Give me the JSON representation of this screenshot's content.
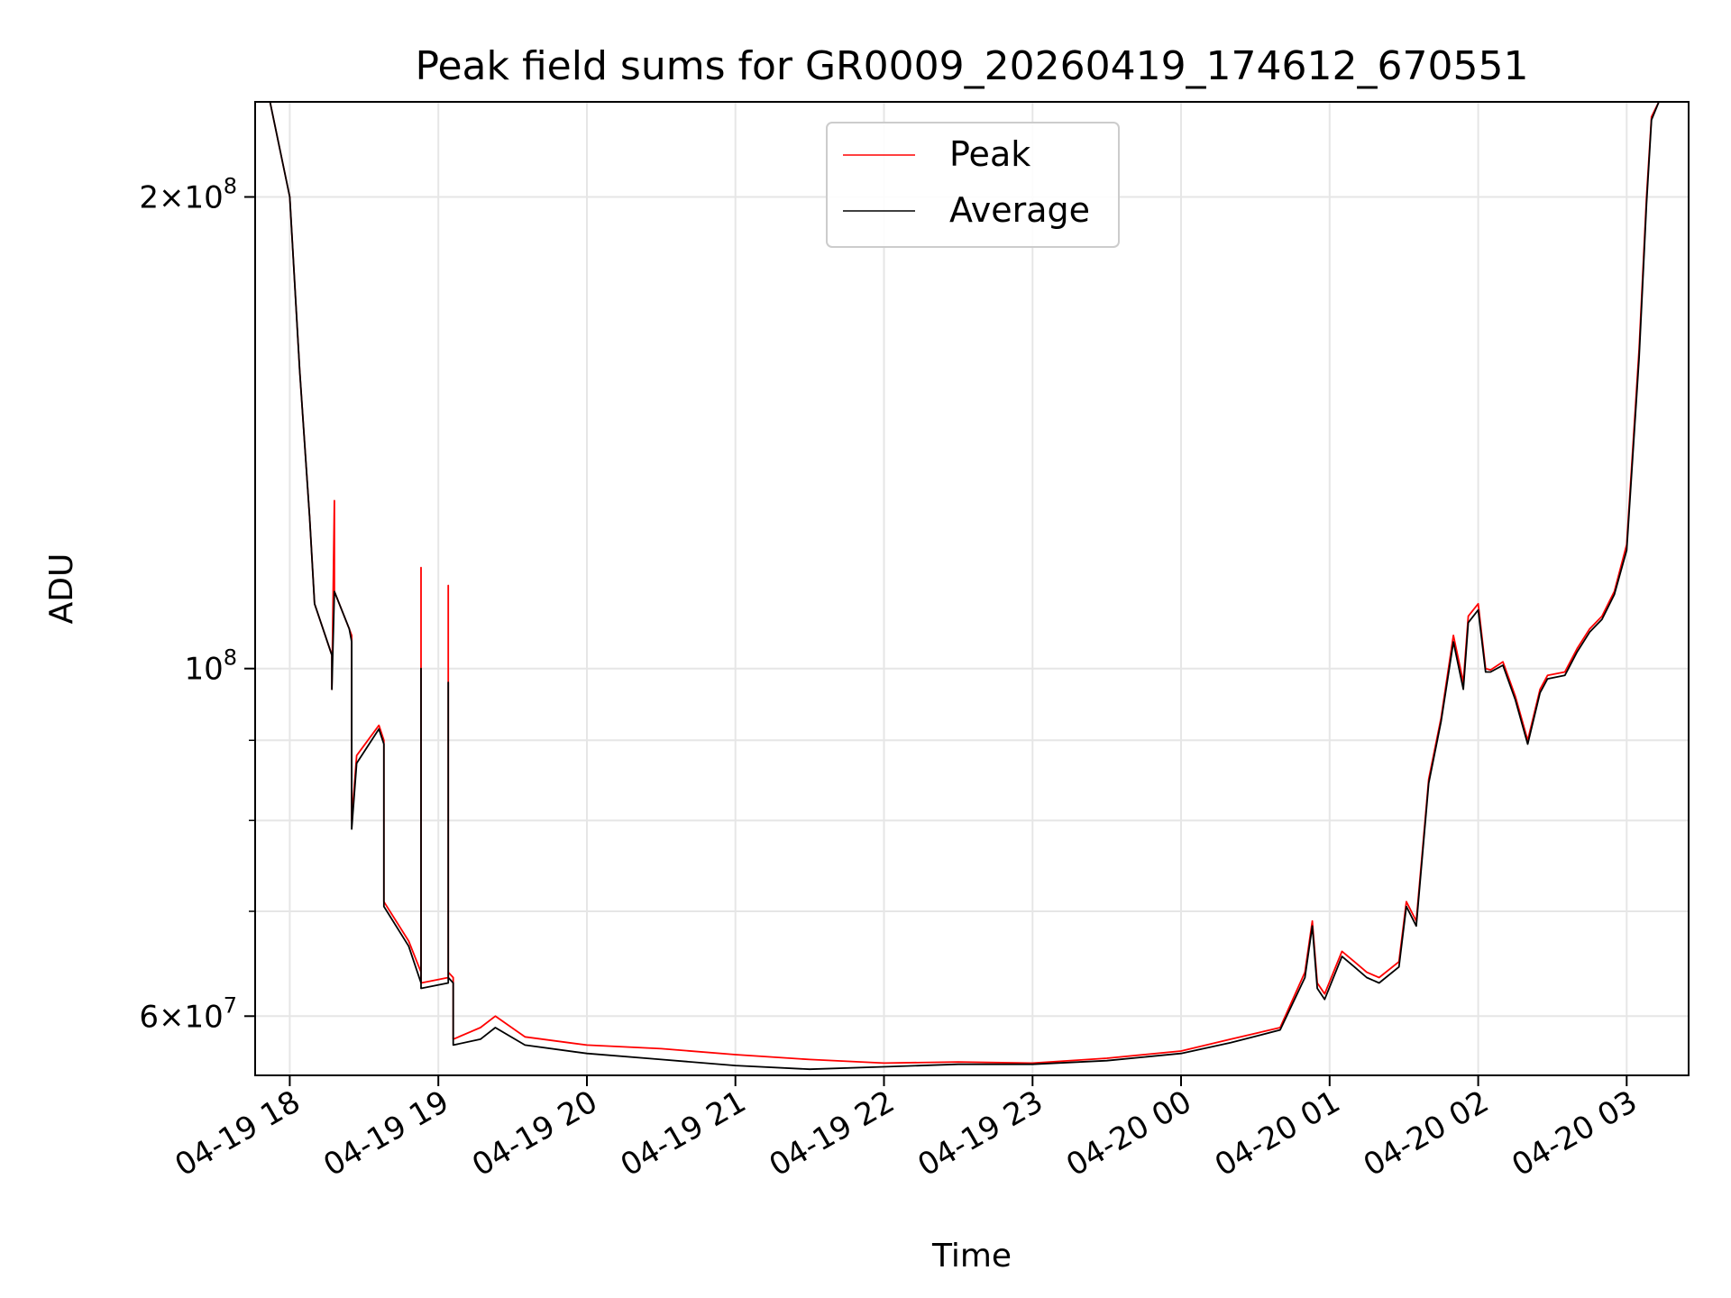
{
  "chart_data": {
    "type": "line",
    "title": "Peak field sums for GR0009_20260419_174612_670551",
    "xlabel": "Time",
    "ylabel": "ADU",
    "y_scale": "log",
    "ylim": [
      55000000,
      230000000
    ],
    "xlim": [
      "2026-04-19 17:46",
      "2026-04-20 03:25"
    ],
    "grid": true,
    "legend_position": "top-center",
    "x_ticks": [
      {
        "t": "2026-04-19 18:00",
        "label": "04-19 18"
      },
      {
        "t": "2026-04-19 19:00",
        "label": "04-19 19"
      },
      {
        "t": "2026-04-19 20:00",
        "label": "04-19 20"
      },
      {
        "t": "2026-04-19 21:00",
        "label": "04-19 21"
      },
      {
        "t": "2026-04-19 22:00",
        "label": "04-19 22"
      },
      {
        "t": "2026-04-19 23:00",
        "label": "04-19 23"
      },
      {
        "t": "2026-04-20 00:00",
        "label": "04-20 00"
      },
      {
        "t": "2026-04-20 01:00",
        "label": "04-20 01"
      },
      {
        "t": "2026-04-20 02:00",
        "label": "04-20 02"
      },
      {
        "t": "2026-04-20 03:00",
        "label": "04-20 03"
      }
    ],
    "y_ticks": [
      {
        "value": 60000000,
        "base": "6",
        "sup": "7"
      },
      {
        "value": 100000000,
        "base": "",
        "sup": "8"
      },
      {
        "value": 200000000,
        "base": "2",
        "sup": "8"
      }
    ],
    "y_minor_ticks": [
      70000000,
      80000000,
      90000000
    ],
    "series": [
      {
        "name": "Peak",
        "color": "#ff0000",
        "x": [
          "2026-04-19 17:46",
          "2026-04-19 17:52",
          "2026-04-19 18:00",
          "2026-04-19 18:04",
          "2026-04-19 18:08",
          "2026-04-19 18:10",
          "2026-04-19 18:17",
          "2026-04-19 18:17",
          "2026-04-19 18:18",
          "2026-04-19 18:18",
          "2026-04-19 18:24",
          "2026-04-19 18:25",
          "2026-04-19 18:25",
          "2026-04-19 18:27",
          "2026-04-19 18:36",
          "2026-04-19 18:38",
          "2026-04-19 18:38",
          "2026-04-19 18:48",
          "2026-04-19 18:53",
          "2026-04-19 18:53",
          "2026-04-19 18:53",
          "2026-04-19 19:04",
          "2026-04-19 19:04",
          "2026-04-19 19:04",
          "2026-04-19 19:06",
          "2026-04-19 19:06",
          "2026-04-19 19:17",
          "2026-04-19 19:23",
          "2026-04-19 19:35",
          "2026-04-19 20:00",
          "2026-04-19 20:30",
          "2026-04-19 21:00",
          "2026-04-19 21:30",
          "2026-04-19 22:00",
          "2026-04-19 22:30",
          "2026-04-19 23:00",
          "2026-04-19 23:30",
          "2026-04-20 00:00",
          "2026-04-20 00:20",
          "2026-04-20 00:40",
          "2026-04-20 00:50",
          "2026-04-20 00:53",
          "2026-04-20 00:55",
          "2026-04-20 00:58",
          "2026-04-20 01:05",
          "2026-04-20 01:10",
          "2026-04-20 01:15",
          "2026-04-20 01:20",
          "2026-04-20 01:28",
          "2026-04-20 01:31",
          "2026-04-20 01:35",
          "2026-04-20 01:40",
          "2026-04-20 01:45",
          "2026-04-20 01:50",
          "2026-04-20 01:54",
          "2026-04-20 01:56",
          "2026-04-20 02:00",
          "2026-04-20 02:03",
          "2026-04-20 02:05",
          "2026-04-20 02:10",
          "2026-04-20 02:15",
          "2026-04-20 02:20",
          "2026-04-20 02:25",
          "2026-04-20 02:28",
          "2026-04-20 02:35",
          "2026-04-20 02:40",
          "2026-04-20 02:45",
          "2026-04-20 02:50",
          "2026-04-20 02:55",
          "2026-04-20 03:00",
          "2026-04-20 03:05",
          "2026-04-20 03:08",
          "2026-04-20 03:10",
          "2026-04-20 03:13",
          "2026-04-20 03:25"
        ],
        "y": [
          230000000,
          230000000,
          200000000,
          155000000,
          125000000,
          110000000,
          102000000,
          97000000,
          128000000,
          112000000,
          106000000,
          105000000,
          80000000,
          88000000,
          92000000,
          90000000,
          71000000,
          67000000,
          64000000,
          116000000,
          63000000,
          63500000,
          113000000,
          64000000,
          63500000,
          58000000,
          59000000,
          60000000,
          58200000,
          57500000,
          57200000,
          56700000,
          56300000,
          56000000,
          56100000,
          56000000,
          56400000,
          57000000,
          58000000,
          59000000,
          64000000,
          69000000,
          63000000,
          62000000,
          66000000,
          65000000,
          64000000,
          63500000,
          65000000,
          71000000,
          69000000,
          85000000,
          93000000,
          105000000,
          98000000,
          108000000,
          110000000,
          100000000,
          99800000,
          101000000,
          96000000,
          90000000,
          97000000,
          99000000,
          99500000,
          103000000,
          106000000,
          108000000,
          112000000,
          120000000,
          160000000,
          200000000,
          225000000,
          230000000,
          230000000
        ]
      },
      {
        "name": "Average",
        "color": "#000000",
        "x": [
          "2026-04-19 17:46",
          "2026-04-19 17:52",
          "2026-04-19 18:00",
          "2026-04-19 18:04",
          "2026-04-19 18:08",
          "2026-04-19 18:10",
          "2026-04-19 18:17",
          "2026-04-19 18:17",
          "2026-04-19 18:18",
          "2026-04-19 18:18",
          "2026-04-19 18:24",
          "2026-04-19 18:25",
          "2026-04-19 18:25",
          "2026-04-19 18:27",
          "2026-04-19 18:36",
          "2026-04-19 18:38",
          "2026-04-19 18:38",
          "2026-04-19 18:48",
          "2026-04-19 18:53",
          "2026-04-19 18:53",
          "2026-04-19 18:53",
          "2026-04-19 19:04",
          "2026-04-19 19:04",
          "2026-04-19 19:04",
          "2026-04-19 19:06",
          "2026-04-19 19:06",
          "2026-04-19 19:17",
          "2026-04-19 19:23",
          "2026-04-19 19:35",
          "2026-04-19 20:00",
          "2026-04-19 20:30",
          "2026-04-19 21:00",
          "2026-04-19 21:30",
          "2026-04-19 22:00",
          "2026-04-19 22:30",
          "2026-04-19 23:00",
          "2026-04-19 23:30",
          "2026-04-20 00:00",
          "2026-04-20 00:20",
          "2026-04-20 00:40",
          "2026-04-20 00:50",
          "2026-04-20 00:53",
          "2026-04-20 00:55",
          "2026-04-20 00:58",
          "2026-04-20 01:05",
          "2026-04-20 01:10",
          "2026-04-20 01:15",
          "2026-04-20 01:20",
          "2026-04-20 01:28",
          "2026-04-20 01:31",
          "2026-04-20 01:35",
          "2026-04-20 01:40",
          "2026-04-20 01:45",
          "2026-04-20 01:50",
          "2026-04-20 01:54",
          "2026-04-20 01:56",
          "2026-04-20 02:00",
          "2026-04-20 02:03",
          "2026-04-20 02:05",
          "2026-04-20 02:10",
          "2026-04-20 02:15",
          "2026-04-20 02:20",
          "2026-04-20 02:25",
          "2026-04-20 02:28",
          "2026-04-20 02:35",
          "2026-04-20 02:40",
          "2026-04-20 02:45",
          "2026-04-20 02:50",
          "2026-04-20 02:55",
          "2026-04-20 03:00",
          "2026-04-20 03:05",
          "2026-04-20 03:08",
          "2026-04-20 03:10",
          "2026-04-20 03:13",
          "2026-04-20 03:25"
        ],
        "y": [
          230000000,
          230000000,
          200000000,
          155000000,
          125000000,
          110000000,
          102000000,
          97000000,
          112000000,
          112000000,
          106000000,
          104000000,
          79000000,
          87000000,
          91500000,
          89500000,
          70500000,
          66500000,
          63000000,
          100000000,
          62500000,
          63000000,
          98000000,
          63500000,
          63000000,
          57500000,
          58000000,
          59000000,
          57500000,
          56800000,
          56300000,
          55800000,
          55500000,
          55700000,
          55900000,
          55900000,
          56200000,
          56800000,
          57700000,
          58800000,
          63500000,
          68500000,
          62500000,
          61500000,
          65500000,
          64500000,
          63500000,
          63000000,
          64500000,
          70500000,
          68500000,
          84500000,
          92500000,
          104000000,
          97000000,
          107000000,
          109000000,
          99500000,
          99500000,
          100500000,
          95500000,
          89500000,
          96500000,
          98500000,
          99000000,
          102500000,
          105500000,
          107500000,
          111500000,
          119000000,
          158000000,
          198000000,
          224000000,
          230000000,
          230000000
        ]
      }
    ]
  }
}
